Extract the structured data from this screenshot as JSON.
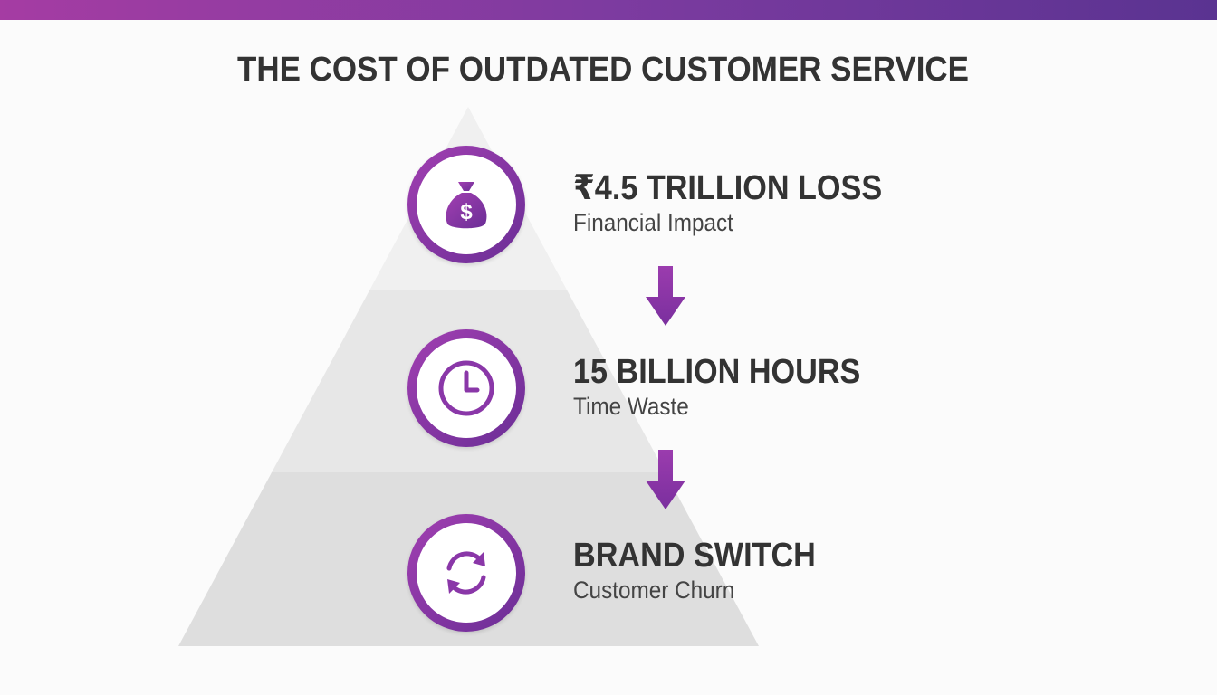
{
  "title": "THE COST OF OUTDATED CUSTOMER SERVICE",
  "colors": {
    "accent_start": "#a53ca3",
    "accent_end": "#5a3391",
    "text": "#333333"
  },
  "tiers": [
    {
      "icon": "money-bag-icon",
      "heading": "₹4.5 TRILLION LOSS",
      "subheading": "Financial Impact"
    },
    {
      "icon": "clock-icon",
      "heading": "15 BILLION HOURS",
      "subheading": "Time Waste"
    },
    {
      "icon": "refresh-cycle-icon",
      "heading": "BRAND SWITCH",
      "subheading": "Customer Churn"
    }
  ]
}
